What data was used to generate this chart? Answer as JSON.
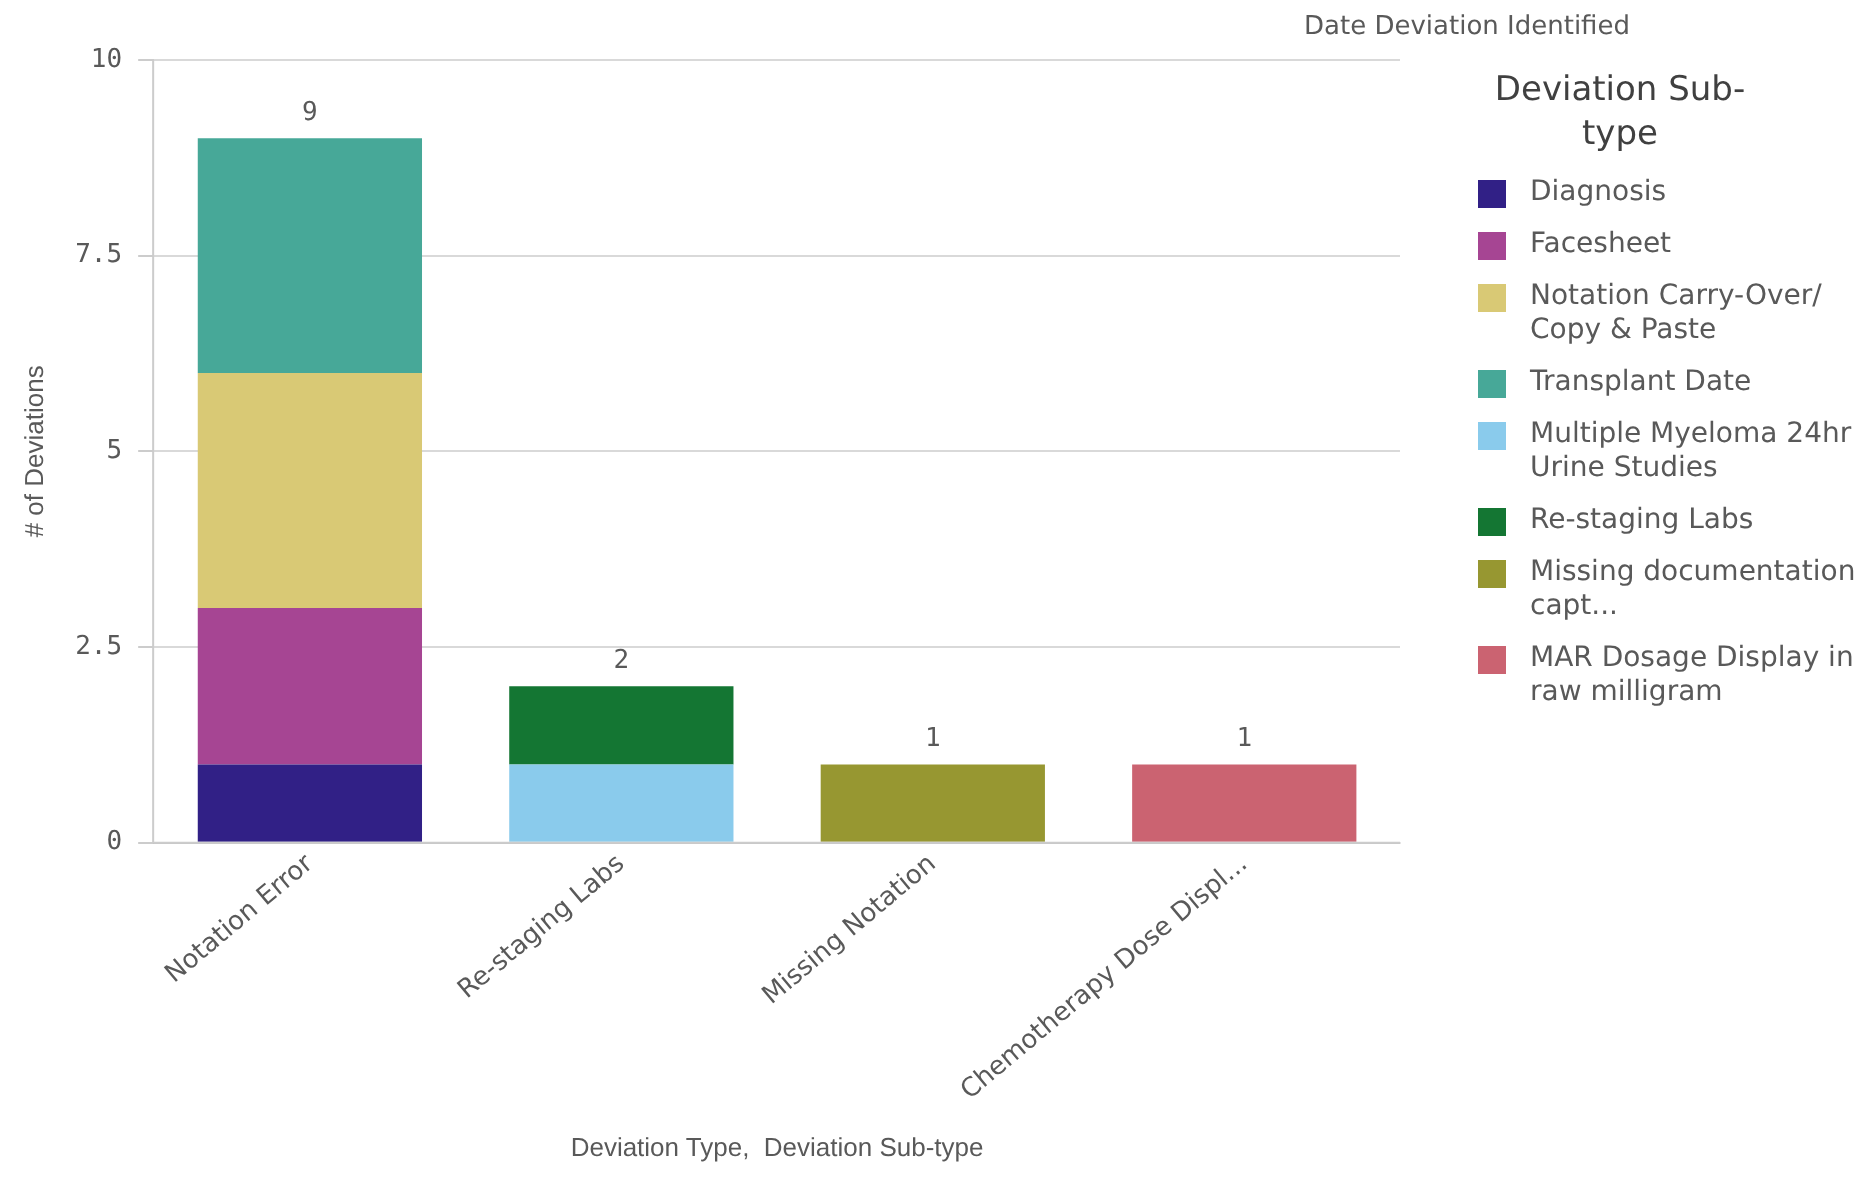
{
  "chart_data": {
    "type": "bar",
    "subtitle": "Date Deviation Identified",
    "xlabel": "Deviation Type,  Deviation Sub-type",
    "ylabel": "# of Deviations",
    "legend_title": "Deviation Sub-type",
    "categories": [
      "Notation Error",
      "Re-staging Labs",
      "Missing Notation",
      "Chemotherapy Dose Displ..."
    ],
    "series": [
      {
        "name": "Diagnosis",
        "color": "#312086",
        "values": [
          1,
          null,
          null,
          null
        ]
      },
      {
        "name": "Facesheet",
        "color": "#a64593",
        "values": [
          2,
          null,
          null,
          null
        ]
      },
      {
        "name": "Notation Carry-Over/ Copy & Paste",
        "color": "#d9c975",
        "values": [
          3,
          null,
          null,
          null
        ]
      },
      {
        "name": "Transplant Date",
        "color": "#47a898",
        "values": [
          3,
          null,
          null,
          null
        ]
      },
      {
        "name": "Multiple Myeloma 24hr Urine Studies",
        "color": "#8acbec",
        "values": [
          null,
          1,
          null,
          null
        ]
      },
      {
        "name": "Re-staging Labs",
        "color": "#147633",
        "values": [
          null,
          1,
          null,
          null
        ]
      },
      {
        "name": "Missing documentation capt...",
        "color": "#979731",
        "values": [
          null,
          null,
          1,
          null
        ]
      },
      {
        "name": "MAR Dosage Display in raw milligram",
        "color": "#cb6371",
        "values": [
          null,
          null,
          null,
          1
        ]
      }
    ],
    "stacked": true,
    "totals": [
      "9",
      "2",
      "1",
      "1"
    ],
    "ylim": [
      0,
      10
    ],
    "yticks": [
      0,
      2.5,
      5,
      7.5,
      10
    ],
    "grid": "y",
    "legend": "right"
  }
}
